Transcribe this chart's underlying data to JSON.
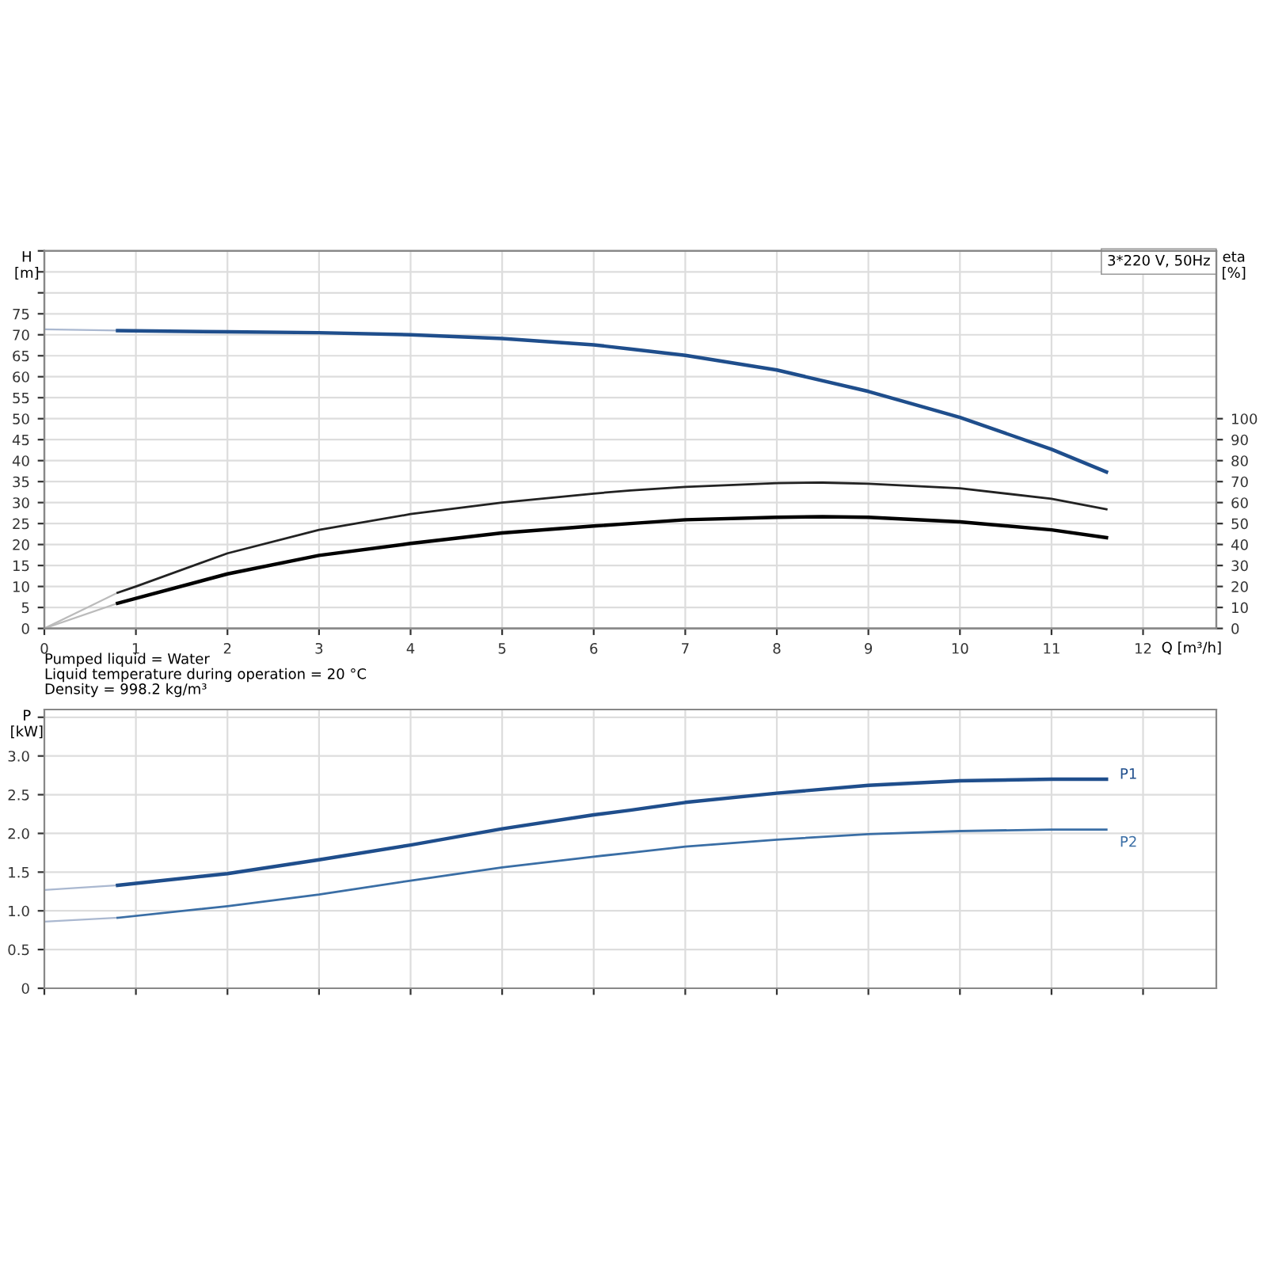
{
  "chart_data": [
    {
      "type": "line",
      "xlabel": "Q [m³/h]",
      "ylabel": "H\n[m]",
      "y2label": "eta\n[%]",
      "xlim": [
        0,
        12.8
      ],
      "xticks": [
        0,
        1,
        2,
        3,
        4,
        5,
        6,
        7,
        8,
        9,
        10,
        11,
        12
      ],
      "ylim": [
        0,
        90
      ],
      "yticks": [
        0,
        5,
        10,
        15,
        20,
        25,
        30,
        35,
        40,
        45,
        50,
        55,
        60,
        65,
        70,
        75,
        {
          "value": 80,
          "label": null
        },
        {
          "value": 85,
          "label": null
        },
        {
          "value": 90,
          "label": null
        }
      ],
      "y2lim": [
        0,
        180
      ],
      "y2ticks": [
        0,
        10,
        20,
        30,
        40,
        50,
        60,
        70,
        80,
        90,
        100
      ],
      "grid": true,
      "series": [
        {
          "color": "#aab8d0",
          "x": [
            0,
            0.8
          ],
          "values": [
            71.3,
            71.0
          ]
        },
        {
          "color": "#1f4e8c",
          "x": [
            0.8,
            2,
            3,
            4,
            5,
            6,
            6.4,
            7,
            8,
            9,
            10,
            11,
            11.6
          ],
          "values": [
            71.0,
            70.7,
            70.5,
            70.0,
            69.1,
            67.6,
            66.6,
            65.1,
            61.6,
            56.5,
            50.3,
            42.7,
            37.3
          ]
        },
        {
          "color": "#bbbbbb",
          "axis": "y2",
          "x": [
            0,
            0.8
          ],
          "values": [
            0,
            17
          ]
        },
        {
          "color": "#222222",
          "axis": "y2",
          "x": [
            0.8,
            1,
            2,
            3,
            4,
            5,
            6,
            6.4,
            7,
            8,
            8.5,
            9,
            10,
            11,
            11.6
          ],
          "values": [
            17,
            20,
            35.8,
            47,
            54.5,
            60,
            64.3,
            65.8,
            67.5,
            69.3,
            69.5,
            69,
            66.8,
            61.8,
            56.8
          ]
        },
        {
          "color": "#bbbbbb",
          "axis": "y2",
          "x": [
            0,
            0.8
          ],
          "values": [
            0,
            12
          ]
        },
        {
          "color": "#000000",
          "axis": "y2",
          "x": [
            0.8,
            1,
            2,
            3,
            4,
            5,
            6,
            6.4,
            7,
            8,
            8.5,
            9,
            10,
            11,
            11.6
          ],
          "values": [
            12,
            14.3,
            26,
            34.8,
            40.5,
            45.5,
            48.8,
            50,
            51.8,
            53,
            53.3,
            53,
            50.8,
            47,
            43.3
          ]
        }
      ],
      "annotations": [
        "3*220 V, 50Hz",
        "Pumped liquid = Water",
        "Liquid temperature during operation = 20 °C",
        "Density = 998.2 kg/m³"
      ]
    },
    {
      "type": "line",
      "ylabel": "P\n[kW]",
      "tick_labels": "y",
      "xlim": [
        0,
        12.8
      ],
      "xticks": [
        0,
        1,
        2,
        3,
        4,
        5,
        6,
        7,
        8,
        9,
        10,
        11,
        12
      ],
      "ylim": [
        0,
        3.6
      ],
      "yticks": [
        0,
        0.5,
        {
          "value": 1,
          "label": "1.0"
        },
        1.5,
        {
          "value": 2,
          "label": "2.0"
        },
        2.5,
        {
          "value": 3,
          "label": "3.0"
        },
        {
          "value": 3.5,
          "label": null
        }
      ],
      "grid": true,
      "series": [
        {
          "color": "#aab8d0",
          "x": [
            0,
            0.8
          ],
          "values": [
            1.27,
            1.33
          ]
        },
        {
          "name": "P1",
          "color": "#1f4e8c",
          "x": [
            0.8,
            2,
            3,
            4,
            5,
            6,
            6.4,
            7,
            8,
            9,
            10,
            11,
            11.6
          ],
          "values": [
            1.33,
            1.48,
            1.66,
            1.85,
            2.06,
            2.24,
            2.3,
            2.4,
            2.52,
            2.62,
            2.68,
            2.7,
            2.7
          ]
        },
        {
          "color": "#aab8d0",
          "x": [
            0,
            0.8
          ],
          "values": [
            0.86,
            0.91
          ]
        },
        {
          "name": "P2",
          "color": "#3a6ea5",
          "x": [
            0.8,
            2,
            3,
            4,
            5,
            6,
            6.4,
            7,
            8,
            9,
            10,
            11,
            11.6
          ],
          "values": [
            0.91,
            1.06,
            1.21,
            1.39,
            1.56,
            1.7,
            1.75,
            1.83,
            1.92,
            1.99,
            2.03,
            2.05,
            2.05
          ]
        }
      ]
    }
  ]
}
